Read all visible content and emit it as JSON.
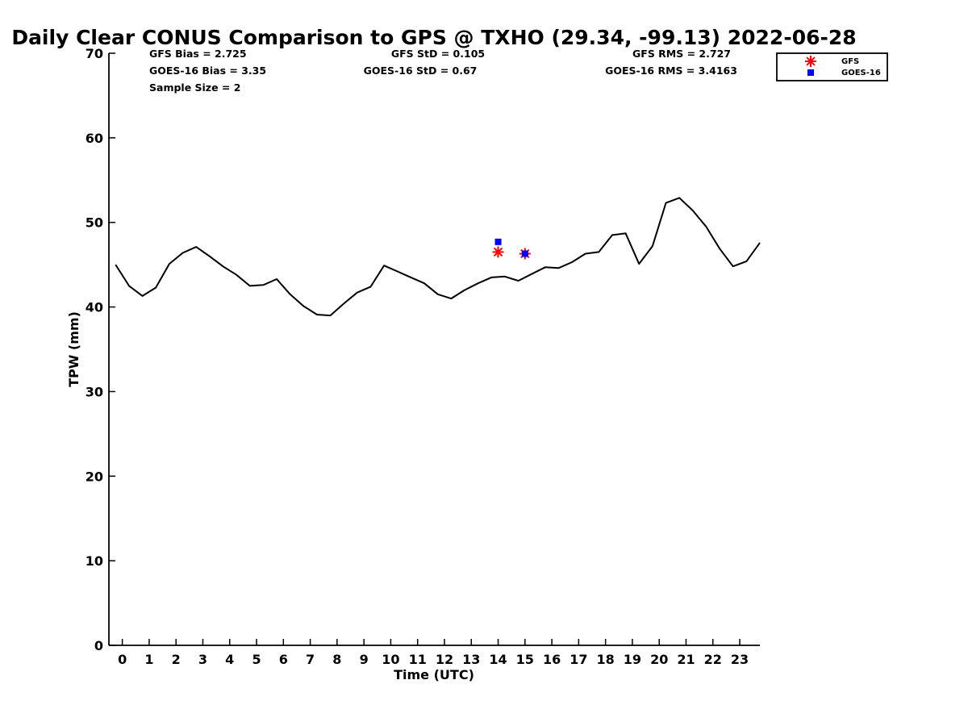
{
  "chart_data": {
    "type": "line",
    "title": "Daily Clear CONUS Comparison to GPS @ TXHO (29.34, -99.13) 2022-06-28",
    "xlabel": "Time (UTC)",
    "ylabel": "TPW (mm)",
    "xlim": [
      -0.5,
      23.75
    ],
    "ylim": [
      0,
      70
    ],
    "x_ticks": [
      "0",
      "1",
      "2",
      "3",
      "4",
      "5",
      "6",
      "7",
      "8",
      "9",
      "10",
      "11",
      "12",
      "13",
      "14",
      "15",
      "16",
      "17",
      "18",
      "19",
      "20",
      "21",
      "22",
      "23"
    ],
    "y_ticks": [
      "0",
      "10",
      "20",
      "30",
      "40",
      "50",
      "60",
      "70"
    ],
    "grid": false,
    "legend_position": "top-right",
    "stats": [
      {
        "text": "GFS Bias = 2.725",
        "anchor": "start"
      },
      {
        "text": "GOES-16 Bias = 3.35",
        "anchor": "start"
      },
      {
        "text": "Sample Size = 2",
        "anchor": "start"
      },
      {
        "text": "GFS StD = 0.105",
        "anchor": "middle"
      },
      {
        "text": "GOES-16 StD = 0.67",
        "anchor": "middle"
      },
      {
        "text": "GFS RMS = 2.727",
        "anchor": "middle"
      },
      {
        "text": "GOES-16 RMS = 3.4163",
        "anchor": "middle"
      }
    ],
    "gps_line": {
      "color": "#000000",
      "x": [
        -0.25,
        0.25,
        0.75,
        1.25,
        1.75,
        2.25,
        2.75,
        3.25,
        3.75,
        4.25,
        4.75,
        5.25,
        5.75,
        6.25,
        6.75,
        7.25,
        7.75,
        8.25,
        8.75,
        9.25,
        9.75,
        10.25,
        10.75,
        11.25,
        11.75,
        12.25,
        12.75,
        13.25,
        13.75,
        14.25,
        14.75,
        15.25,
        15.75,
        16.25,
        16.75,
        17.25,
        17.75,
        18.25,
        18.75,
        19.25,
        19.75,
        20.25,
        20.75,
        21.25,
        21.75,
        22.25,
        22.75,
        23.25,
        23.75
      ],
      "y": [
        45.0,
        42.5,
        41.3,
        42.3,
        45.1,
        46.4,
        47.1,
        46.0,
        44.8,
        43.8,
        42.5,
        42.6,
        43.3,
        41.5,
        40.1,
        39.1,
        39.0,
        40.4,
        41.7,
        42.4,
        44.9,
        44.2,
        43.5,
        42.8,
        41.5,
        41.0,
        42.0,
        42.8,
        43.5,
        43.6,
        43.1,
        43.9,
        44.7,
        44.6,
        45.3,
        46.3,
        46.5,
        48.5,
        48.7,
        45.1,
        47.2,
        52.3,
        52.9,
        51.4,
        49.5,
        46.9,
        44.8,
        45.4,
        47.6
      ]
    },
    "series": [
      {
        "name": "GFS",
        "marker": "asterisk",
        "color": "#ff0000",
        "x": [
          14,
          15
        ],
        "y": [
          46.5,
          46.3
        ]
      },
      {
        "name": "GOES-16",
        "marker": "square",
        "color": "#0000ff",
        "x": [
          14,
          15
        ],
        "y": [
          47.7,
          46.3
        ]
      }
    ]
  }
}
